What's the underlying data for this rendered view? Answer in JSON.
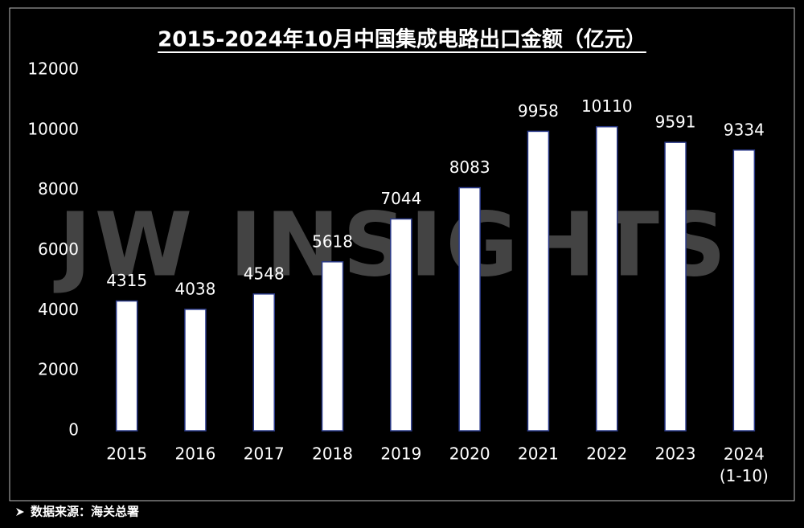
{
  "chart_data": {
    "type": "bar",
    "title": "2015-2024年10月中国集成电路出口金额（亿元）",
    "watermark": "JW INSIGHTS",
    "source": "数据来源：海关总署",
    "categories": [
      "2015",
      "2016",
      "2017",
      "2018",
      "2019",
      "2020",
      "2021",
      "2022",
      "2023",
      "2024\n(1-10)"
    ],
    "values": [
      4315,
      4038,
      4548,
      5618,
      7044,
      8083,
      9958,
      10110,
      9591,
      9334
    ],
    "color": "#ffffff",
    "ylim": [
      0,
      12000
    ],
    "yticks": [
      0,
      2000,
      4000,
      6000,
      8000,
      10000,
      12000
    ],
    "grid": false
  }
}
